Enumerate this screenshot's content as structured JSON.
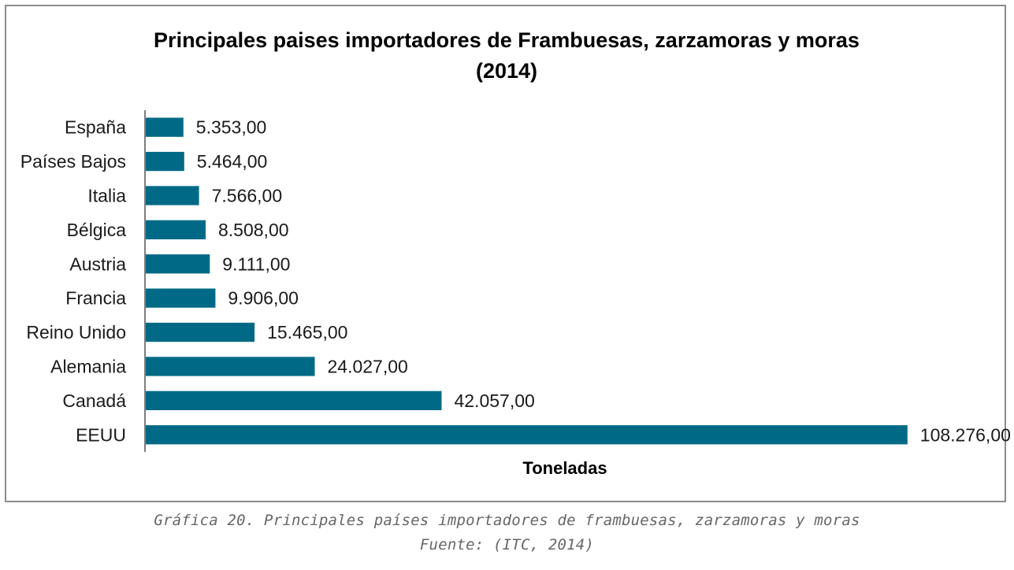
{
  "chart_data": {
    "type": "bar",
    "orientation": "horizontal",
    "title_lines": [
      "Principales paises importadores de Frambuesas, zarzamoras y moras",
      "(2014)"
    ],
    "xlabel": "Toneladas",
    "ylabel": "",
    "xlim": [
      0,
      112000
    ],
    "grid": false,
    "legend": "none",
    "bar_color": "#006a86",
    "categories": [
      "España",
      "Países Bajos",
      "Italia",
      "Bélgica",
      "Austria",
      "Francia",
      "Reino Unido",
      "Alemania",
      "Canadá",
      "EEUU"
    ],
    "values": [
      5353,
      5464,
      7566,
      8508,
      9111,
      9906,
      15465,
      24027,
      42057,
      108276
    ],
    "data_labels": [
      "5.353,00",
      "5.464,00",
      "7.566,00",
      "8.508,00",
      "9.111,00",
      "9.906,00",
      "15.465,00",
      "24.027,00",
      "42.057,00",
      "108.276,00"
    ]
  },
  "caption": {
    "line1": "Gráfica 20. Principales países importadores de frambuesas, zarzamoras y moras",
    "line2": "Fuente: (ITC, 2014)"
  }
}
